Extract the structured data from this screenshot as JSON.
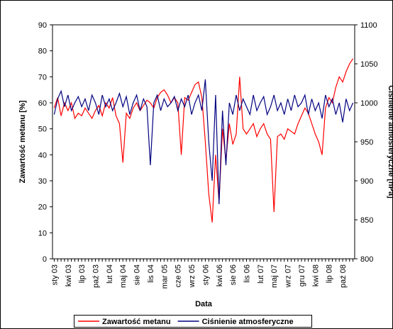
{
  "chart_data": {
    "type": "line",
    "x_label": "Data",
    "y_label": "Zawartość metanu [%]",
    "y2_label": "Ciśnienie atmosferyczne [hPa]",
    "categories": [
      "sty 03",
      null,
      null,
      null,
      "kwi 03",
      null,
      null,
      null,
      "lip 03",
      null,
      null,
      null,
      "paź 03",
      null,
      null,
      null,
      "lut 04",
      null,
      null,
      null,
      "maj 04",
      null,
      null,
      null,
      "sie 04",
      null,
      null,
      null,
      "lis 04",
      null,
      null,
      null,
      "mar 05",
      null,
      null,
      null,
      "cze 05",
      null,
      null,
      null,
      "wrz 05",
      null,
      null,
      null,
      "sty 06",
      null,
      null,
      null,
      "kwi 06",
      null,
      null,
      null,
      "sie 06",
      null,
      null,
      null,
      "lis 06",
      null,
      null,
      null,
      "lut 07",
      null,
      null,
      null,
      "maj 07",
      null,
      null,
      null,
      "wrz 07",
      null,
      null,
      null,
      "gru 07",
      null,
      null,
      null,
      "kwi 08",
      null,
      null,
      null,
      "lip 08",
      null,
      null,
      null,
      "paź 08",
      null,
      null,
      null
    ],
    "series": [
      {
        "name": "Zawartość metanu",
        "color": "#ff0000",
        "axis": "y",
        "values": [
          58,
          62,
          55,
          60,
          57,
          60,
          54,
          56,
          55,
          58,
          56,
          54,
          57,
          59,
          55,
          60,
          58,
          62,
          55,
          52,
          37,
          56,
          54,
          58,
          60,
          57,
          59,
          61,
          60,
          58,
          62,
          64,
          65,
          63,
          60,
          62,
          60,
          40,
          62,
          61,
          64,
          67,
          68,
          62,
          45,
          25,
          14,
          40,
          22,
          50,
          38,
          52,
          44,
          48,
          70,
          50,
          48,
          50,
          52,
          47,
          50,
          52,
          48,
          46,
          18,
          47,
          48,
          46,
          50,
          49,
          48,
          52,
          55,
          58,
          56,
          52,
          48,
          45,
          40,
          58,
          62,
          60,
          66,
          70,
          68,
          72,
          75,
          77
        ]
      },
      {
        "name": "Ciśnienie atmosferyczne",
        "color": "#000080",
        "axis": "y2",
        "values": [
          985,
          1005,
          1015,
          995,
          1010,
          990,
          1000,
          1008,
          995,
          1005,
          990,
          1010,
          1000,
          985,
          1010,
          995,
          1005,
          990,
          1000,
          1012,
          995,
          1008,
          985,
          1000,
          1010,
          990,
          1005,
          995,
          920,
          1000,
          1010,
          990,
          1005,
          995,
          1000,
          1008,
          990,
          1005,
          995,
          1010,
          985,
          1000,
          1010,
          990,
          1030,
          950,
          900,
          1010,
          870,
          990,
          920,
          1000,
          985,
          1010,
          990,
          1005,
          995,
          985,
          1010,
          990,
          1000,
          1008,
          985,
          995,
          1010,
          990,
          1000,
          985,
          1005,
          990,
          1010,
          995,
          1000,
          1010,
          985,
          1005,
          990,
          1000,
          980,
          1010,
          995,
          1005,
          985,
          1000,
          975,
          1005,
          990,
          1000
        ]
      }
    ],
    "ylim": [
      0,
      90
    ],
    "yticks": [
      0,
      10,
      20,
      30,
      40,
      50,
      60,
      70,
      80,
      90
    ],
    "y2lim": [
      800,
      1100
    ],
    "y2ticks": [
      800,
      850,
      900,
      950,
      1000,
      1050,
      1100
    ],
    "legend": "bottom"
  }
}
